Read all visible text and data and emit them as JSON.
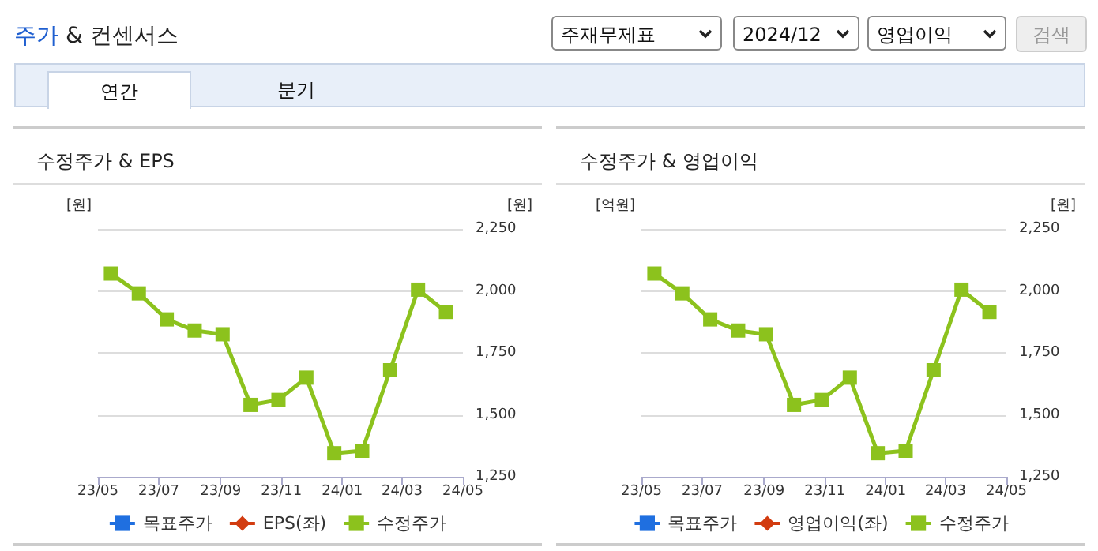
{
  "chart_data": [
    {
      "type": "other",
      "title": "주가 & 컨센서스",
      "annotations": [
        "주재무제표",
        "2024/12",
        "영업이익",
        "검색",
        "연간",
        "분기"
      ]
    },
    {
      "type": "line",
      "title": "수정주가 & EPS",
      "ylabel": "[원]",
      "y2label": "[원]",
      "x": [
        "2023-05-14",
        "2023-06-11",
        "2023-07-09",
        "2023-08-06",
        "2023-09-03",
        "2023-10-01",
        "2023-10-29",
        "2023-11-26",
        "2023-12-24",
        "2024-01-21",
        "2024-02-18",
        "2024-03-17",
        "2024-04-14"
      ],
      "xlim": [
        "2023-05-01",
        "2024-05-01"
      ],
      "xticks": [
        {
          "value": "2023-05-01",
          "label": "23/05"
        },
        {
          "value": "2023-07-01",
          "label": "23/07"
        },
        {
          "value": "2023-09-01",
          "label": "23/09"
        },
        {
          "value": "2023-11-01",
          "label": "23/11"
        },
        {
          "value": "2024-01-01",
          "label": "24/01"
        },
        {
          "value": "2024-03-01",
          "label": "24/03"
        },
        {
          "value": "2024-05-01",
          "label": "24/05"
        }
      ],
      "y2lim": [
        1250,
        2250
      ],
      "y2ticks": [
        {
          "value": 1250,
          "label": "1,250"
        },
        {
          "value": 1500,
          "label": "1,500"
        },
        {
          "value": 1750,
          "label": "1,750"
        },
        {
          "value": 2000,
          "label": "2,000"
        },
        {
          "value": 2250,
          "label": "2,250"
        }
      ],
      "series": [
        {
          "name": "목표주가",
          "color": "#1f6fe0",
          "marker": "square",
          "axis": "y2",
          "values": [
            null,
            null,
            null,
            null,
            null,
            null,
            null,
            null,
            null,
            null,
            null,
            null,
            null
          ]
        },
        {
          "name": "EPS(좌)",
          "color": "#d23c10",
          "marker": "diamond",
          "axis": "y",
          "values": [
            null,
            null,
            null,
            null,
            null,
            null,
            null,
            null,
            null,
            null,
            null,
            null,
            null
          ]
        },
        {
          "name": "수정주가",
          "color": "#8cc21d",
          "marker": "square",
          "axis": "y2",
          "values": [
            2070,
            1990,
            1885,
            1840,
            1825,
            1540,
            1560,
            1650,
            1345,
            1355,
            1680,
            2005,
            1915
          ]
        }
      ],
      "grid": "y",
      "legend": "bottom"
    },
    {
      "type": "line",
      "title": "수정주가 & 영업이익",
      "ylabel": "[억원]",
      "y2label": "[원]",
      "x": [
        "2023-05-14",
        "2023-06-11",
        "2023-07-09",
        "2023-08-06",
        "2023-09-03",
        "2023-10-01",
        "2023-10-29",
        "2023-11-26",
        "2023-12-24",
        "2024-01-21",
        "2024-02-18",
        "2024-03-17",
        "2024-04-14"
      ],
      "xlim": [
        "2023-05-01",
        "2024-05-01"
      ],
      "xticks": [
        {
          "value": "2023-05-01",
          "label": "23/05"
        },
        {
          "value": "2023-07-01",
          "label": "23/07"
        },
        {
          "value": "2023-09-01",
          "label": "23/09"
        },
        {
          "value": "2023-11-01",
          "label": "23/11"
        },
        {
          "value": "2024-01-01",
          "label": "24/01"
        },
        {
          "value": "2024-03-01",
          "label": "24/03"
        },
        {
          "value": "2024-05-01",
          "label": "24/05"
        }
      ],
      "y2lim": [
        1250,
        2250
      ],
      "y2ticks": [
        {
          "value": 1250,
          "label": "1,250"
        },
        {
          "value": 1500,
          "label": "1,500"
        },
        {
          "value": 1750,
          "label": "1,750"
        },
        {
          "value": 2000,
          "label": "2,000"
        },
        {
          "value": 2250,
          "label": "2,250"
        }
      ],
      "series": [
        {
          "name": "목표주가",
          "color": "#1f6fe0",
          "marker": "square",
          "axis": "y2",
          "values": [
            null,
            null,
            null,
            null,
            null,
            null,
            null,
            null,
            null,
            null,
            null,
            null,
            null
          ]
        },
        {
          "name": "영업이익(좌)",
          "color": "#d23c10",
          "marker": "diamond",
          "axis": "y",
          "values": [
            null,
            null,
            null,
            null,
            null,
            null,
            null,
            null,
            null,
            null,
            null,
            null,
            null
          ]
        },
        {
          "name": "수정주가",
          "color": "#8cc21d",
          "marker": "square",
          "axis": "y2",
          "values": [
            2070,
            1990,
            1885,
            1840,
            1825,
            1540,
            1560,
            1650,
            1345,
            1355,
            1680,
            2005,
            1915
          ]
        }
      ],
      "grid": "y",
      "legend": "bottom"
    }
  ]
}
